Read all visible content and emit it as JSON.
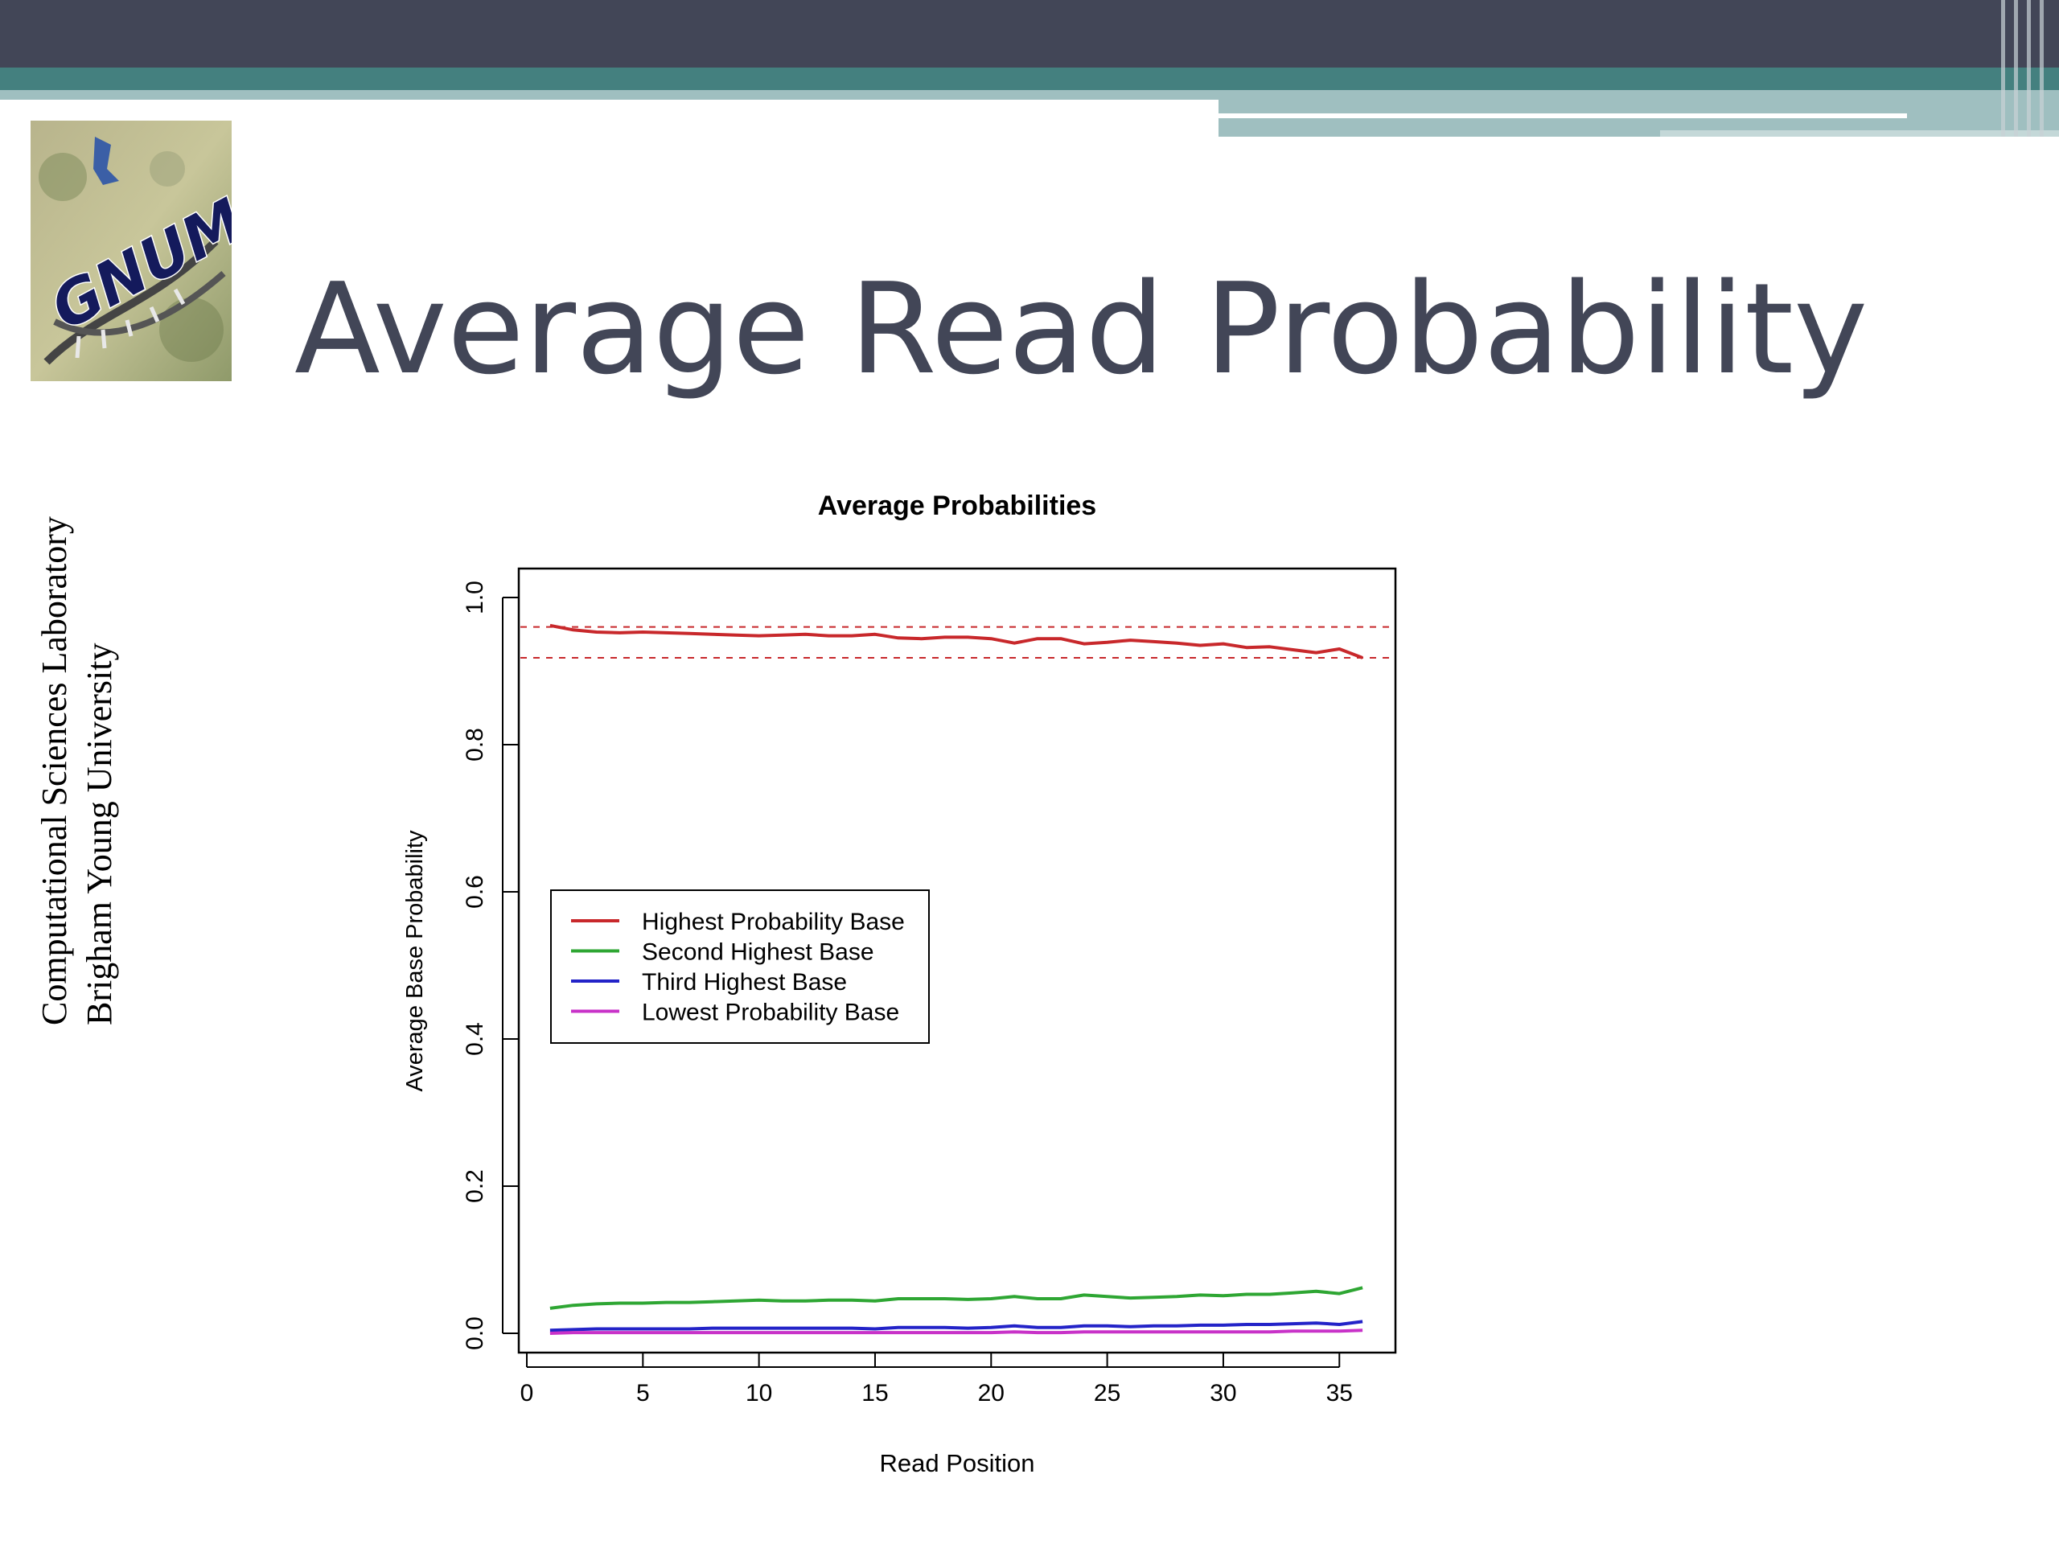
{
  "slide": {
    "title": "Average Read Probability",
    "side_lines": [
      "Computational Sciences Laboratory",
      "Brigham Young University"
    ],
    "logo_text": "GNUMap",
    "colors": {
      "dark_bar": "#424657",
      "teal_band": "#44807f",
      "light_band": "#9fbfc0",
      "title_text": "#424657"
    }
  },
  "chart_data": {
    "type": "line",
    "title": "Average Probabilities",
    "xlabel": "Read Position",
    "ylabel": "Average Base Probability",
    "xlim": [
      0,
      37
    ],
    "ylim": [
      0,
      1.0
    ],
    "xticks": [
      "0",
      "5",
      "10",
      "15",
      "20",
      "25",
      "30",
      "35"
    ],
    "yticks": [
      "0.0",
      "0.2",
      "0.4",
      "0.6",
      "0.8",
      "1.0"
    ],
    "legend_position": "middle-left",
    "reference_lines": [
      0.96,
      0.918
    ],
    "x": [
      1,
      2,
      3,
      4,
      5,
      6,
      7,
      8,
      9,
      10,
      11,
      12,
      13,
      14,
      15,
      16,
      17,
      18,
      19,
      20,
      21,
      22,
      23,
      24,
      25,
      26,
      27,
      28,
      29,
      30,
      31,
      32,
      33,
      34,
      35,
      36
    ],
    "series": [
      {
        "name": "Highest Probability Base",
        "color": "#c8282b",
        "values": [
          0.962,
          0.956,
          0.953,
          0.952,
          0.953,
          0.952,
          0.951,
          0.95,
          0.949,
          0.948,
          0.949,
          0.95,
          0.948,
          0.948,
          0.95,
          0.945,
          0.944,
          0.946,
          0.946,
          0.944,
          0.938,
          0.944,
          0.944,
          0.937,
          0.939,
          0.942,
          0.94,
          0.938,
          0.935,
          0.937,
          0.932,
          0.933,
          0.929,
          0.925,
          0.93,
          0.918
        ]
      },
      {
        "name": "Second Highest Base",
        "color": "#2ea633",
        "values": [
          0.034,
          0.038,
          0.04,
          0.041,
          0.041,
          0.042,
          0.042,
          0.043,
          0.044,
          0.045,
          0.044,
          0.044,
          0.045,
          0.045,
          0.044,
          0.047,
          0.047,
          0.047,
          0.046,
          0.047,
          0.05,
          0.047,
          0.047,
          0.052,
          0.05,
          0.048,
          0.049,
          0.05,
          0.052,
          0.051,
          0.053,
          0.053,
          0.055,
          0.057,
          0.054,
          0.062
        ]
      },
      {
        "name": "Third Highest Base",
        "color": "#2323c8",
        "values": [
          0.004,
          0.005,
          0.006,
          0.006,
          0.006,
          0.006,
          0.006,
          0.007,
          0.007,
          0.007,
          0.007,
          0.007,
          0.007,
          0.007,
          0.006,
          0.008,
          0.008,
          0.008,
          0.007,
          0.008,
          0.01,
          0.008,
          0.008,
          0.01,
          0.01,
          0.009,
          0.01,
          0.01,
          0.011,
          0.011,
          0.012,
          0.012,
          0.013,
          0.014,
          0.012,
          0.016
        ]
      },
      {
        "name": "Lowest Probability Base",
        "color": "#c832c8",
        "values": [
          0.0,
          0.001,
          0.001,
          0.001,
          0.001,
          0.001,
          0.001,
          0.001,
          0.001,
          0.001,
          0.001,
          0.001,
          0.001,
          0.001,
          0.001,
          0.001,
          0.001,
          0.001,
          0.001,
          0.001,
          0.002,
          0.001,
          0.001,
          0.002,
          0.002,
          0.002,
          0.002,
          0.002,
          0.002,
          0.002,
          0.002,
          0.002,
          0.003,
          0.003,
          0.003,
          0.004
        ]
      }
    ]
  }
}
